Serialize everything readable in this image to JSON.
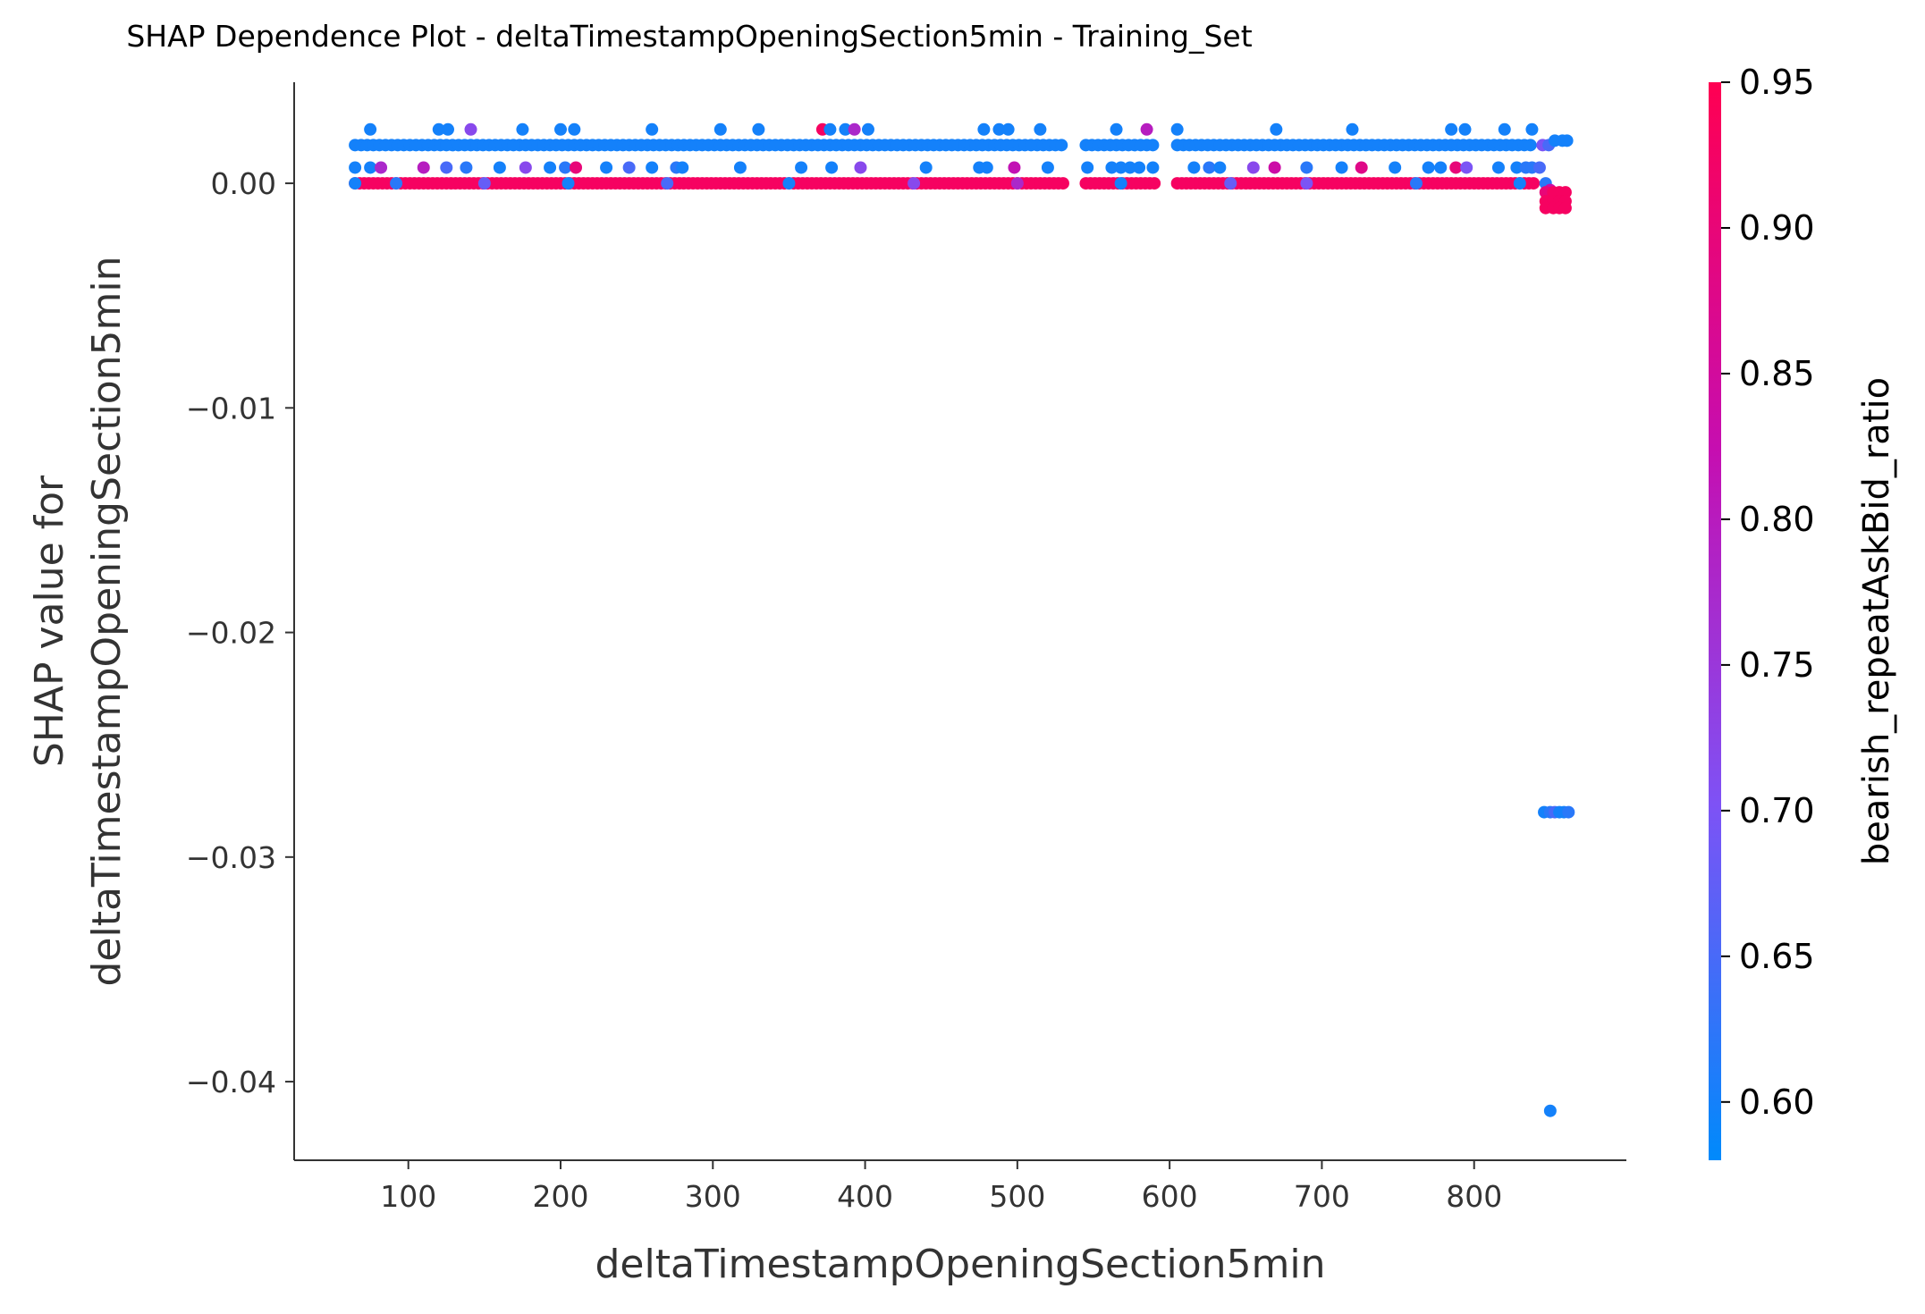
{
  "chart_data": {
    "type": "scatter",
    "title": "SHAP Dependence Plot - deltaTimestampOpeningSection5min - Training_Set",
    "xlabel": "deltaTimestampOpeningSection5min",
    "ylabel_line1": "SHAP value for",
    "ylabel_line2": "deltaTimestampOpeningSection5min",
    "xlim": [
      25,
      900
    ],
    "ylim": [
      -0.0435,
      0.0045
    ],
    "xticks": [
      100,
      200,
      300,
      400,
      500,
      600,
      700,
      800
    ],
    "yticks": [
      0.0,
      -0.01,
      -0.02,
      -0.03,
      -0.04
    ],
    "xtick_labels": [
      "100",
      "200",
      "300",
      "400",
      "500",
      "600",
      "700",
      "800"
    ],
    "ytick_labels": [
      "0.00",
      "−0.01",
      "−0.02",
      "−0.03",
      "−0.04"
    ],
    "grid": false,
    "colorbar": {
      "label": "bearish_repeatAskBid_ratio",
      "range": [
        0.58,
        0.95
      ],
      "ticks": [
        0.6,
        0.65,
        0.7,
        0.75,
        0.8,
        0.85,
        0.9,
        0.95
      ],
      "tick_labels": [
        "0.60",
        "0.65",
        "0.70",
        "0.75",
        "0.80",
        "0.85",
        "0.90",
        "0.95"
      ],
      "colors": [
        "#008afb",
        "#7e52f5",
        "#c60eb0",
        "#ff0052"
      ]
    },
    "bands": [
      {
        "y": 0.0017,
        "x_from": 65,
        "x_to": 840,
        "step": 4,
        "color_value": 0.6
      },
      {
        "y": 0.0,
        "x_from": 65,
        "x_to": 840,
        "step": 3,
        "color_value": 0.93
      }
    ],
    "gaps": [
      [
        533,
        543
      ],
      [
        592,
        603
      ]
    ],
    "series": [
      {
        "points": [
          [
            75,
            0.0024,
            0.6
          ],
          [
            120,
            0.0024,
            0.6
          ],
          [
            126,
            0.0024,
            0.6
          ],
          [
            141,
            0.0024,
            0.72
          ],
          [
            175,
            0.0024,
            0.6
          ],
          [
            200,
            0.0024,
            0.6
          ],
          [
            209,
            0.0024,
            0.6
          ],
          [
            260,
            0.0024,
            0.6
          ],
          [
            305,
            0.0024,
            0.6
          ],
          [
            330,
            0.0024,
            0.6
          ],
          [
            372,
            0.0024,
            0.93
          ],
          [
            377,
            0.0024,
            0.6
          ],
          [
            387,
            0.0024,
            0.6
          ],
          [
            393,
            0.0024,
            0.78
          ],
          [
            402,
            0.0024,
            0.6
          ],
          [
            478,
            0.0024,
            0.6
          ],
          [
            488,
            0.0024,
            0.6
          ],
          [
            494,
            0.0024,
            0.6
          ],
          [
            515,
            0.0024,
            0.6
          ],
          [
            565,
            0.0024,
            0.6
          ],
          [
            585,
            0.0024,
            0.8
          ],
          [
            605,
            0.0024,
            0.6
          ],
          [
            670,
            0.0024,
            0.6
          ],
          [
            720,
            0.0024,
            0.6
          ],
          [
            785,
            0.0024,
            0.6
          ],
          [
            794,
            0.0024,
            0.6
          ],
          [
            820,
            0.0024,
            0.6
          ],
          [
            838,
            0.0024,
            0.6
          ],
          [
            65,
            0.0007,
            0.6
          ],
          [
            75,
            0.0007,
            0.6
          ],
          [
            82,
            0.0007,
            0.78
          ],
          [
            110,
            0.0007,
            0.8
          ],
          [
            125,
            0.0007,
            0.65
          ],
          [
            138,
            0.0007,
            0.62
          ],
          [
            160,
            0.0007,
            0.6
          ],
          [
            177,
            0.0007,
            0.72
          ],
          [
            193,
            0.0007,
            0.6
          ],
          [
            203,
            0.0007,
            0.62
          ],
          [
            210,
            0.0007,
            0.9
          ],
          [
            230,
            0.0007,
            0.6
          ],
          [
            245,
            0.0007,
            0.65
          ],
          [
            260,
            0.0007,
            0.6
          ],
          [
            276,
            0.0007,
            0.62
          ],
          [
            280,
            0.0007,
            0.6
          ],
          [
            318,
            0.0007,
            0.6
          ],
          [
            358,
            0.0007,
            0.6
          ],
          [
            378,
            0.0007,
            0.6
          ],
          [
            397,
            0.0007,
            0.72
          ],
          [
            440,
            0.0007,
            0.6
          ],
          [
            475,
            0.0007,
            0.6
          ],
          [
            480,
            0.0007,
            0.6
          ],
          [
            498,
            0.0007,
            0.82
          ],
          [
            520,
            0.0007,
            0.6
          ],
          [
            546,
            0.0007,
            0.6
          ],
          [
            562,
            0.0007,
            0.6
          ],
          [
            568,
            0.0007,
            0.6
          ],
          [
            574,
            0.0007,
            0.6
          ],
          [
            580,
            0.0007,
            0.6
          ],
          [
            589,
            0.0007,
            0.6
          ],
          [
            616,
            0.0007,
            0.6
          ],
          [
            626,
            0.0007,
            0.62
          ],
          [
            633,
            0.0007,
            0.6
          ],
          [
            655,
            0.0007,
            0.72
          ],
          [
            669,
            0.0007,
            0.84
          ],
          [
            690,
            0.0007,
            0.62
          ],
          [
            713,
            0.0007,
            0.6
          ],
          [
            726,
            0.0007,
            0.88
          ],
          [
            748,
            0.0007,
            0.6
          ],
          [
            770,
            0.0007,
            0.6
          ],
          [
            778,
            0.0007,
            0.6
          ],
          [
            788,
            0.0007,
            0.9
          ],
          [
            795,
            0.0007,
            0.7
          ],
          [
            816,
            0.0007,
            0.6
          ],
          [
            828,
            0.0007,
            0.6
          ],
          [
            834,
            0.0007,
            0.62
          ],
          [
            65,
            0.0,
            0.6
          ],
          [
            92,
            0.0,
            0.62
          ],
          [
            150,
            0.0,
            0.68
          ],
          [
            205,
            0.0,
            0.6
          ],
          [
            270,
            0.0,
            0.65
          ],
          [
            350,
            0.0,
            0.6
          ],
          [
            432,
            0.0,
            0.72
          ],
          [
            500,
            0.0,
            0.78
          ],
          [
            568,
            0.0,
            0.6
          ],
          [
            640,
            0.0,
            0.68
          ],
          [
            690,
            0.0,
            0.7
          ],
          [
            762,
            0.0,
            0.62
          ],
          [
            830,
            0.0,
            0.6
          ],
          [
            845,
            0.0017,
            0.7
          ],
          [
            849,
            0.0017,
            0.65
          ],
          [
            853,
            0.0019,
            0.6
          ],
          [
            858,
            0.0019,
            0.6
          ],
          [
            861,
            0.0019,
            0.6
          ],
          [
            838,
            0.0007,
            0.62
          ],
          [
            843,
            0.0007,
            0.65
          ],
          [
            847,
            0.0,
            0.62
          ],
          [
            850,
            -0.0003,
            0.84
          ],
          [
            855,
            -0.0005,
            0.82
          ],
          [
            847,
            -0.0004,
            0.9
          ],
          [
            852,
            -0.0004,
            0.93
          ],
          [
            856,
            -0.0004,
            0.93
          ],
          [
            860,
            -0.0004,
            0.93
          ],
          [
            847,
            -0.0008,
            0.93
          ],
          [
            852,
            -0.0008,
            0.93
          ],
          [
            856,
            -0.0008,
            0.93
          ],
          [
            860,
            -0.0008,
            0.93
          ],
          [
            847,
            -0.0011,
            0.93
          ],
          [
            852,
            -0.0011,
            0.93
          ],
          [
            856,
            -0.0011,
            0.93
          ],
          [
            860,
            -0.0011,
            0.93
          ],
          [
            846,
            -0.028,
            0.6
          ],
          [
            850,
            -0.028,
            0.62
          ],
          [
            853,
            -0.028,
            0.65
          ],
          [
            856,
            -0.028,
            0.6
          ],
          [
            859,
            -0.028,
            0.6
          ],
          [
            862,
            -0.028,
            0.62
          ],
          [
            850,
            -0.0413,
            0.6
          ]
        ]
      }
    ]
  }
}
